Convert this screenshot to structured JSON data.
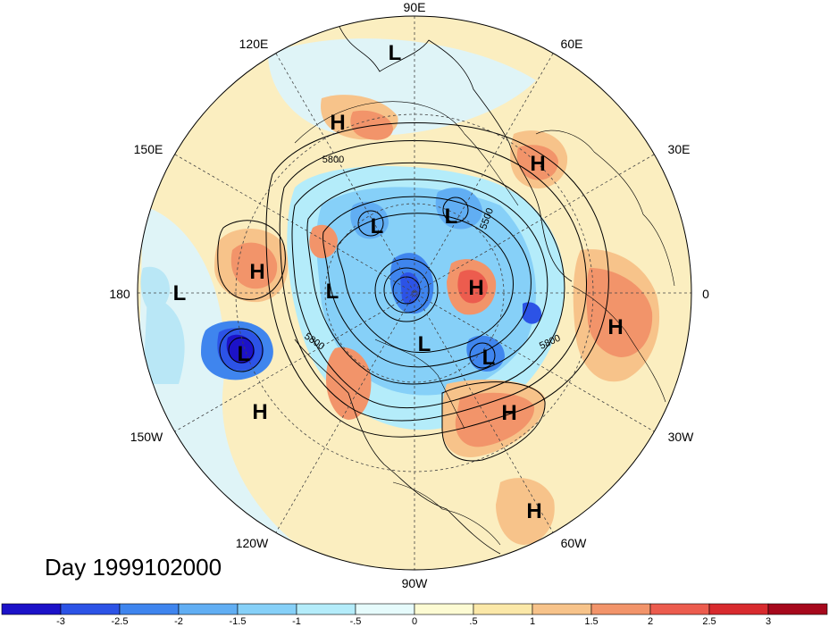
{
  "longitude_labels": {
    "lon_90e": "90E",
    "lon_60e": "60E",
    "lon_30e": "30E",
    "lon_0": "0",
    "lon_30w": "30W",
    "lon_60w": "60W",
    "lon_90w": "90W",
    "lon_120w": "120W",
    "lon_150w": "150W",
    "lon_180": "180",
    "lon_150e": "150E",
    "lon_120e": "120E"
  },
  "pressure_systems": [
    {
      "id": "h-east-siberia",
      "letter": "H"
    },
    {
      "id": "l-east-siberia",
      "letter": "L"
    },
    {
      "id": "h-west-siberia",
      "letter": "H"
    },
    {
      "id": "h-pacific",
      "letter": "H"
    },
    {
      "id": "l-pacific-west",
      "letter": "L"
    },
    {
      "id": "l-gulf-alaska",
      "letter": "L"
    },
    {
      "id": "h-ne-pacific",
      "letter": "H"
    },
    {
      "id": "l-arctic-1",
      "letter": "L"
    },
    {
      "id": "l-arctic-2",
      "letter": "L"
    },
    {
      "id": "l-arctic-3",
      "letter": "L"
    },
    {
      "id": "h-greenland",
      "letter": "H"
    },
    {
      "id": "l-canada",
      "letter": "L"
    },
    {
      "id": "l-hudson",
      "letter": "L"
    },
    {
      "id": "h-africa",
      "letter": "H"
    },
    {
      "id": "h-atlantic",
      "letter": "H"
    },
    {
      "id": "h-caribbean",
      "letter": "H"
    }
  ],
  "contour_labels": {
    "c1": "5800",
    "c2": "5500",
    "c3": "5800",
    "c4": "5800"
  },
  "date_label": "Day 1999102000",
  "colorbar": {
    "colors": [
      "#1c12c8",
      "#2c53e6",
      "#3f85ee",
      "#61aef3",
      "#86d0f8",
      "#b4ecfa",
      "#e6fbfc",
      "#fdfbd3",
      "#fbe8a8",
      "#f7c38a",
      "#f2946a",
      "#ec5c4e",
      "#d82a2e",
      "#a6081c"
    ],
    "ticks": [
      "-3",
      "-2.5",
      "-2",
      "-1.5",
      "-1",
      "-.5",
      "0",
      ".5",
      "1",
      "1.5",
      "2",
      "2.5",
      "3"
    ]
  }
}
